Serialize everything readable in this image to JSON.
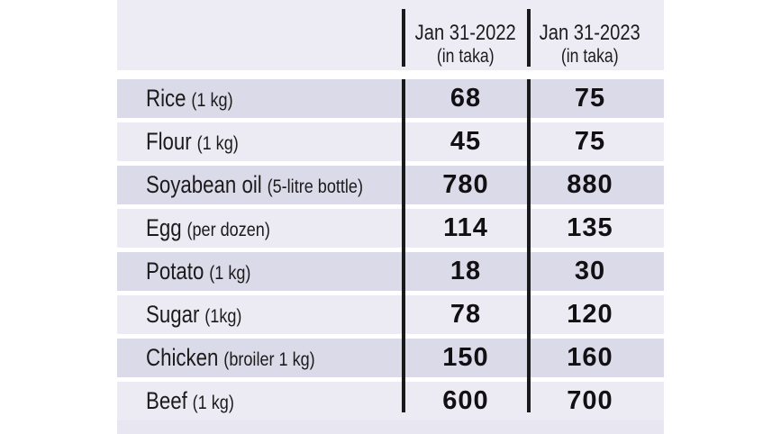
{
  "theme": {
    "page_bg": "#ffffff",
    "header_bg": "#edecf5",
    "row_dark": "#dbdae9",
    "row_light": "#ecebf4",
    "filler": "#e8e7f1",
    "rule": "#1a1a1a",
    "text": "#1d1a1b"
  },
  "table": {
    "columns": [
      {
        "line1": "Jan 31-2022",
        "line2": "(in taka)"
      },
      {
        "line1": "Jan 31-2023",
        "line2": "(in taka)"
      }
    ],
    "rows": [
      {
        "item": "Rice",
        "detail": "(1 kg)",
        "v2022": "68",
        "v2023": "75"
      },
      {
        "item": "Flour",
        "detail": "(1 kg)",
        "v2022": "45",
        "v2023": "75"
      },
      {
        "item": "Soyabean oil",
        "detail": "(5-litre bottle)",
        "v2022": "780",
        "v2023": "880"
      },
      {
        "item": "Egg",
        "detail": "(per dozen)",
        "v2022": "114",
        "v2023": "135"
      },
      {
        "item": "Potato",
        "detail": "(1 kg)",
        "v2022": "18",
        "v2023": "30"
      },
      {
        "item": "Sugar",
        "detail": "(1kg)",
        "v2022": "78",
        "v2023": "120"
      },
      {
        "item": "Chicken",
        "detail": "(broiler 1 kg)",
        "v2022": "150",
        "v2023": "160"
      },
      {
        "item": "Beef",
        "detail": "(1 kg)",
        "v2022": "600",
        "v2023": "700"
      }
    ]
  },
  "chart_data": {
    "type": "table",
    "categories": [
      "Rice (1 kg)",
      "Flour (1 kg)",
      "Soyabean oil (5-litre bottle)",
      "Egg (per dozen)",
      "Potato (1 kg)",
      "Sugar (1kg)",
      "Chicken (broiler 1 kg)",
      "Beef (1 kg)"
    ],
    "series": [
      {
        "name": "Jan 31-2022 (in taka)",
        "values": [
          68,
          45,
          780,
          114,
          18,
          78,
          150,
          600
        ]
      },
      {
        "name": "Jan 31-2023 (in taka)",
        "values": [
          75,
          75,
          880,
          135,
          30,
          120,
          160,
          700
        ]
      }
    ],
    "title": "",
    "xlabel": "",
    "ylabel": ""
  }
}
